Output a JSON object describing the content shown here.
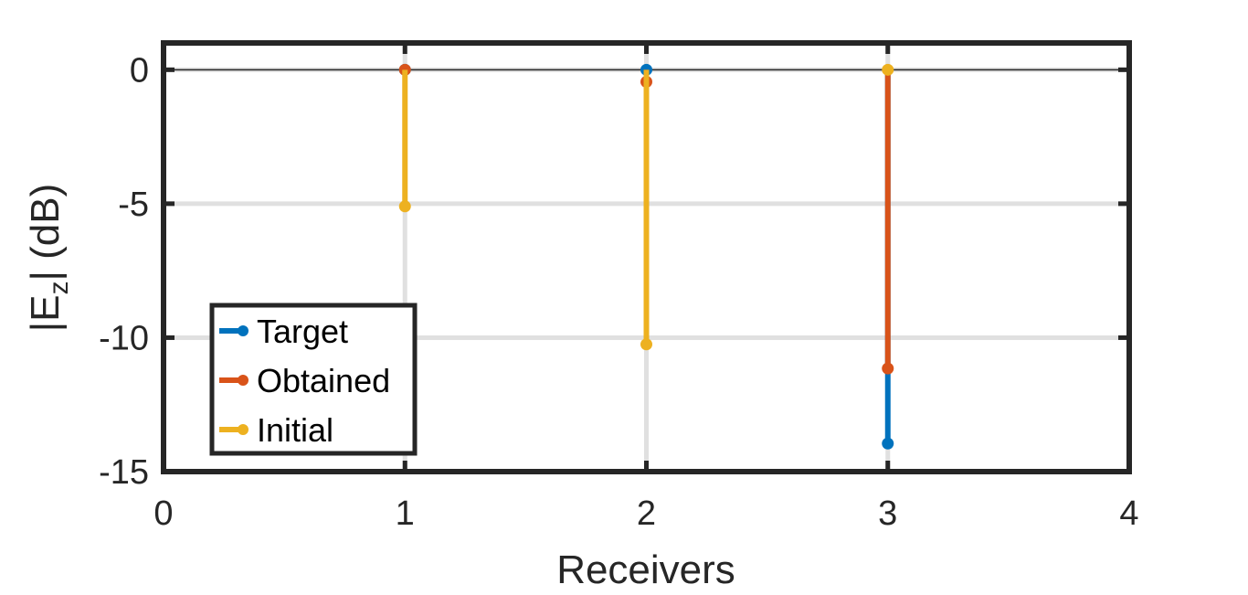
{
  "chart_data": {
    "type": "stem",
    "xlabel": "Receivers",
    "ylabel_main": "|E",
    "ylabel_sub": "z",
    "ylabel_tail": "| (dB)",
    "xlim": [
      0,
      4
    ],
    "ylim": [
      -15,
      1
    ],
    "xticks": [
      0,
      1,
      2,
      3,
      4
    ],
    "yticks": [
      0,
      -5,
      -10,
      -15
    ],
    "grid": true,
    "legend_position": "bottom-left",
    "series": [
      {
        "name": "Target",
        "color": "#0072BD",
        "x": [
          1,
          2,
          3
        ],
        "y": [
          0,
          0,
          -13.95
        ]
      },
      {
        "name": "Obtained",
        "color": "#D95319",
        "x": [
          1,
          2,
          3
        ],
        "y": [
          0,
          -0.45,
          -11.15
        ]
      },
      {
        "name": "Initial",
        "color": "#EDB120",
        "x": [
          1,
          2,
          3
        ],
        "y": [
          -5.1,
          -10.25,
          0
        ]
      }
    ]
  }
}
